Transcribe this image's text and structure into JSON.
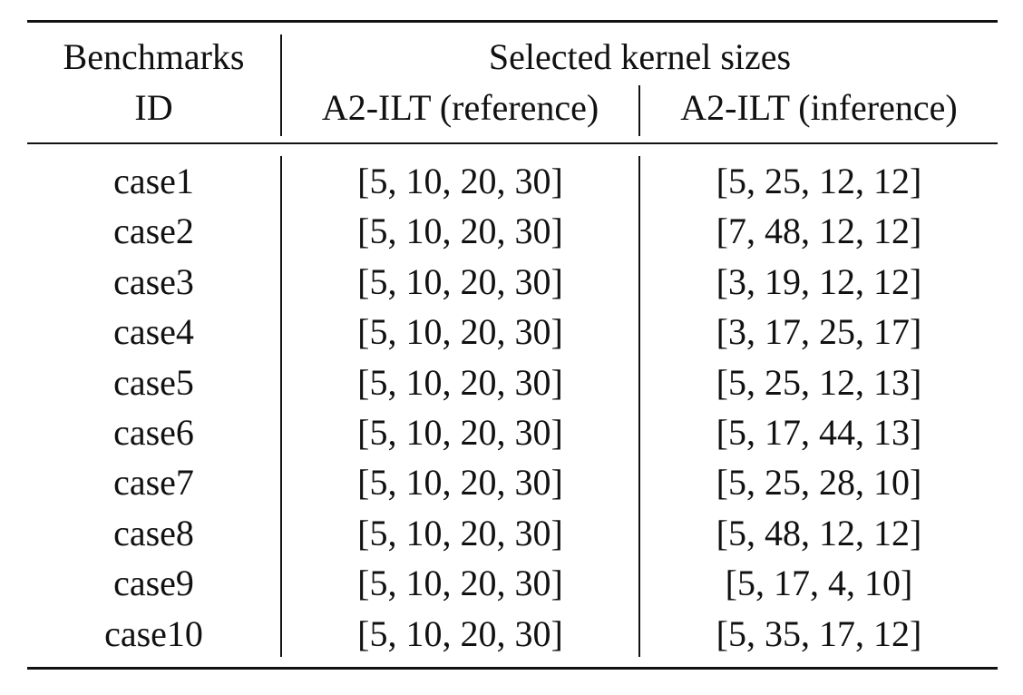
{
  "table": {
    "header": {
      "col1_line1": "Benchmarks",
      "col1_line2": "ID",
      "group_label": "Selected kernel sizes",
      "col2": "A2-ILT (reference)",
      "col3": "A2-ILT (inference)"
    },
    "rows": [
      {
        "id": "case1",
        "reference": "[5, 10, 20, 30]",
        "inference": "[5, 25, 12, 12]"
      },
      {
        "id": "case2",
        "reference": "[5, 10, 20, 30]",
        "inference": "[7, 48, 12, 12]"
      },
      {
        "id": "case3",
        "reference": "[5, 10, 20, 30]",
        "inference": "[3, 19, 12, 12]"
      },
      {
        "id": "case4",
        "reference": "[5, 10, 20, 30]",
        "inference": "[3, 17, 25, 17]"
      },
      {
        "id": "case5",
        "reference": "[5, 10, 20, 30]",
        "inference": "[5, 25, 12, 13]"
      },
      {
        "id": "case6",
        "reference": "[5, 10, 20, 30]",
        "inference": "[5, 17, 44, 13]"
      },
      {
        "id": "case7",
        "reference": "[5, 10, 20, 30]",
        "inference": "[5, 25, 28, 10]"
      },
      {
        "id": "case8",
        "reference": "[5, 10, 20, 30]",
        "inference": "[5, 48, 12, 12]"
      },
      {
        "id": "case9",
        "reference": "[5, 10, 20, 30]",
        "inference": "[5, 17, 4, 10]"
      },
      {
        "id": "case10",
        "reference": "[5, 10, 20, 30]",
        "inference": "[5, 35, 17, 12]"
      }
    ]
  }
}
